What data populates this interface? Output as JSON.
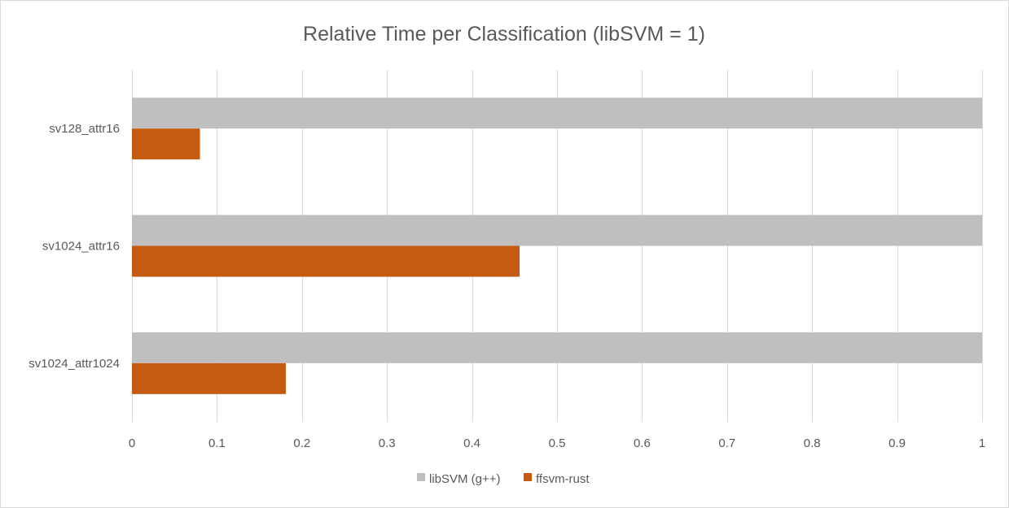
{
  "chart_data": {
    "type": "bar",
    "orientation": "horizontal",
    "title": "Relative Time per Classification (libSVM = 1)",
    "categories": [
      "sv128_attr16",
      "sv1024_attr16",
      "sv1024_attr1024"
    ],
    "series": [
      {
        "name": "libSVM (g++)",
        "values": [
          1,
          1,
          1
        ],
        "color": "#bfbfbf"
      },
      {
        "name": "ffsvm-rust",
        "values": [
          0.08,
          0.456,
          0.181
        ],
        "color": "#c55a11"
      }
    ],
    "xlim": [
      0,
      1
    ],
    "xticks": [
      "0",
      "0.1",
      "0.2",
      "0.3",
      "0.4",
      "0.5",
      "0.6",
      "0.7",
      "0.8",
      "0.9",
      "1"
    ],
    "grid": true,
    "legend_position": "bottom"
  }
}
